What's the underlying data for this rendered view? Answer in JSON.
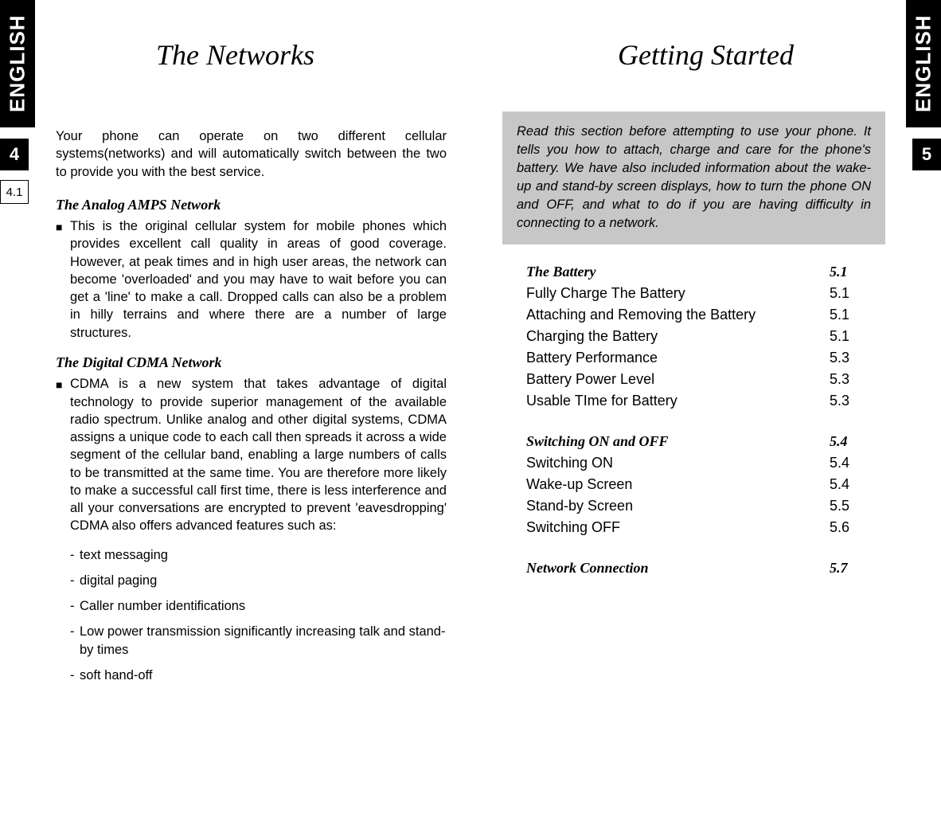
{
  "left": {
    "langTab": "ENGLISH",
    "pageNum": "4",
    "subNum": "4.1",
    "title": "The Networks",
    "intro": "Your phone can operate on two different cellular systems(networks) and will automatically switch between the two to provide you with the best service.",
    "sec1": {
      "head": "The Analog AMPS Network",
      "bullet": "This is the original cellular system for mobile phones which provides excellent call quality in areas of good coverage. However, at peak times and in high user areas, the network can become 'overloaded' and you may have to wait before you can get a 'line' to make a call. Dropped calls can also be a problem in hilly terrains and where there are a number of large structures."
    },
    "sec2": {
      "head": "The Digital CDMA Network",
      "bullet": "CDMA is a new system that takes advantage of digital technology to provide superior management of the available radio spectrum. Unlike analog and other digital systems, CDMA assigns a unique code to each call then spreads it across a wide segment of the cellular band, enabling a large numbers of calls to be transmitted at the same time. You are therefore more likely to make a successful call first time, there is less interference and all your conversations are encrypted to prevent 'eavesdropping' CDMA also offers advanced features such as:",
      "dashes": [
        "text messaging",
        "digital paging",
        "Caller number identifications",
        "Low power transmission significantly increasing talk and stand-by times",
        "soft hand-off"
      ]
    }
  },
  "right": {
    "langTab": "ENGLISH",
    "pageNum": "5",
    "title": "Getting Started",
    "infoBox": "Read this section before attempting to use your phone. It tells you how to attach, charge and care for the phone's battery. We have also included information about the wake-up and stand-by screen displays, how to turn the phone ON and OFF, and what to do if you are having difficulty in connecting to a network.",
    "toc": [
      {
        "label": "The Battery",
        "ref": "5.1",
        "bold": true
      },
      {
        "label": "Fully Charge The Battery",
        "ref": "5.1",
        "bold": false
      },
      {
        "label": "Attaching and Removing the Battery",
        "ref": "5.1",
        "bold": false
      },
      {
        "label": "Charging the Battery",
        "ref": "5.1",
        "bold": false
      },
      {
        "label": "Battery Performance",
        "ref": "5.3",
        "bold": false
      },
      {
        "label": "Battery Power Level",
        "ref": "5.3",
        "bold": false
      },
      {
        "label": "Usable TIme for Battery",
        "ref": "5.3",
        "bold": false
      },
      {
        "gap": true
      },
      {
        "label": "Switching ON and OFF",
        "ref": "5.4",
        "bold": true
      },
      {
        "label": "Switching ON",
        "ref": "5.4",
        "bold": false
      },
      {
        "label": "Wake-up Screen",
        "ref": "5.4",
        "bold": false
      },
      {
        "label": "Stand-by Screen",
        "ref": "5.5",
        "bold": false
      },
      {
        "label": "Switching OFF",
        "ref": "5.6",
        "bold": false
      },
      {
        "gap": true
      },
      {
        "label": "Network Connection",
        "ref": "5.7",
        "bold": true
      }
    ]
  }
}
